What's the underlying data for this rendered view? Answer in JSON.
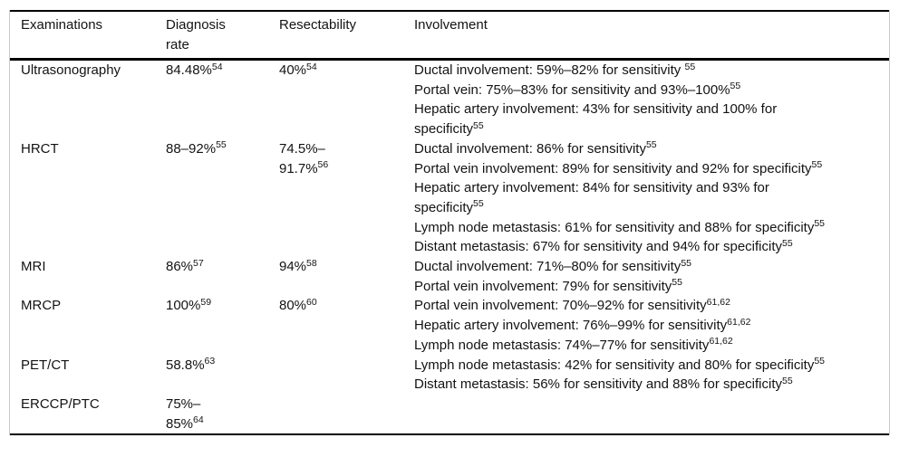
{
  "table": {
    "headers": [
      "Examinations",
      "Diagnosis\nrate",
      "Resectability",
      "Involvement"
    ],
    "rows": [
      {
        "examination": "Ultrasonography",
        "diagnosis_rate": "84.48%^{54}",
        "resectability": "40%^{54}",
        "involvement": [
          "Ductal involvement: 59%–82% for sensitivity ^{55}",
          "Portal vein: 75%–83% for sensitivity and 93%–100%^{55}",
          "Hepatic artery involvement: 43% for sensitivity and 100% for\nspecificity^{55}"
        ]
      },
      {
        "examination": "HRCT",
        "diagnosis_rate": "88–92%^{55}",
        "resectability": "74.5%–\n91.7%^{56}",
        "involvement": [
          "Ductal involvement: 86% for sensitivity^{55}",
          "Portal vein involvement: 89% for sensitivity and 92% for specificity^{55}",
          "Hepatic artery involvement: 84% for sensitivity and 93% for\nspecificity^{55}",
          "Lymph node metastasis: 61% for sensitivity and 88% for specificity^{55}",
          "Distant metastasis: 67% for sensitivity and 94% for specificity^{55}"
        ]
      },
      {
        "examination": "MRI",
        "diagnosis_rate": "86%^{57}",
        "resectability": "94%^{58}",
        "involvement": [
          "Ductal involvement: 71%–80% for sensitivity^{55}",
          "Portal vein involvement: 79% for sensitivity^{55}"
        ]
      },
      {
        "examination": "MRCP",
        "diagnosis_rate": "100%^{59}",
        "resectability": "80%^{60}",
        "involvement": [
          "Portal vein involvement: 70%–92% for sensitivity^{61,62}",
          "Hepatic artery involvement: 76%–99% for sensitivity^{61,62}",
          "Lymph node metastasis: 74%–77% for sensitivity^{61,62}"
        ]
      },
      {
        "examination": "PET/CT",
        "diagnosis_rate": "58.8%^{63}",
        "resectability": "",
        "involvement": [
          "Lymph node metastasis: 42% for sensitivity and 80% for specificity^{55}",
          "Distant metastasis: 56% for sensitivity and 88% for specificity^{55}"
        ]
      },
      {
        "examination": "ERCCP/PTC",
        "diagnosis_rate": "75%–\n85%^{64}",
        "resectability": "",
        "involvement": []
      }
    ],
    "colors": {
      "horizontal_rule": "#000000",
      "side_border": "#c9c9c9",
      "text": "#131313",
      "background": "#ffffff"
    }
  }
}
